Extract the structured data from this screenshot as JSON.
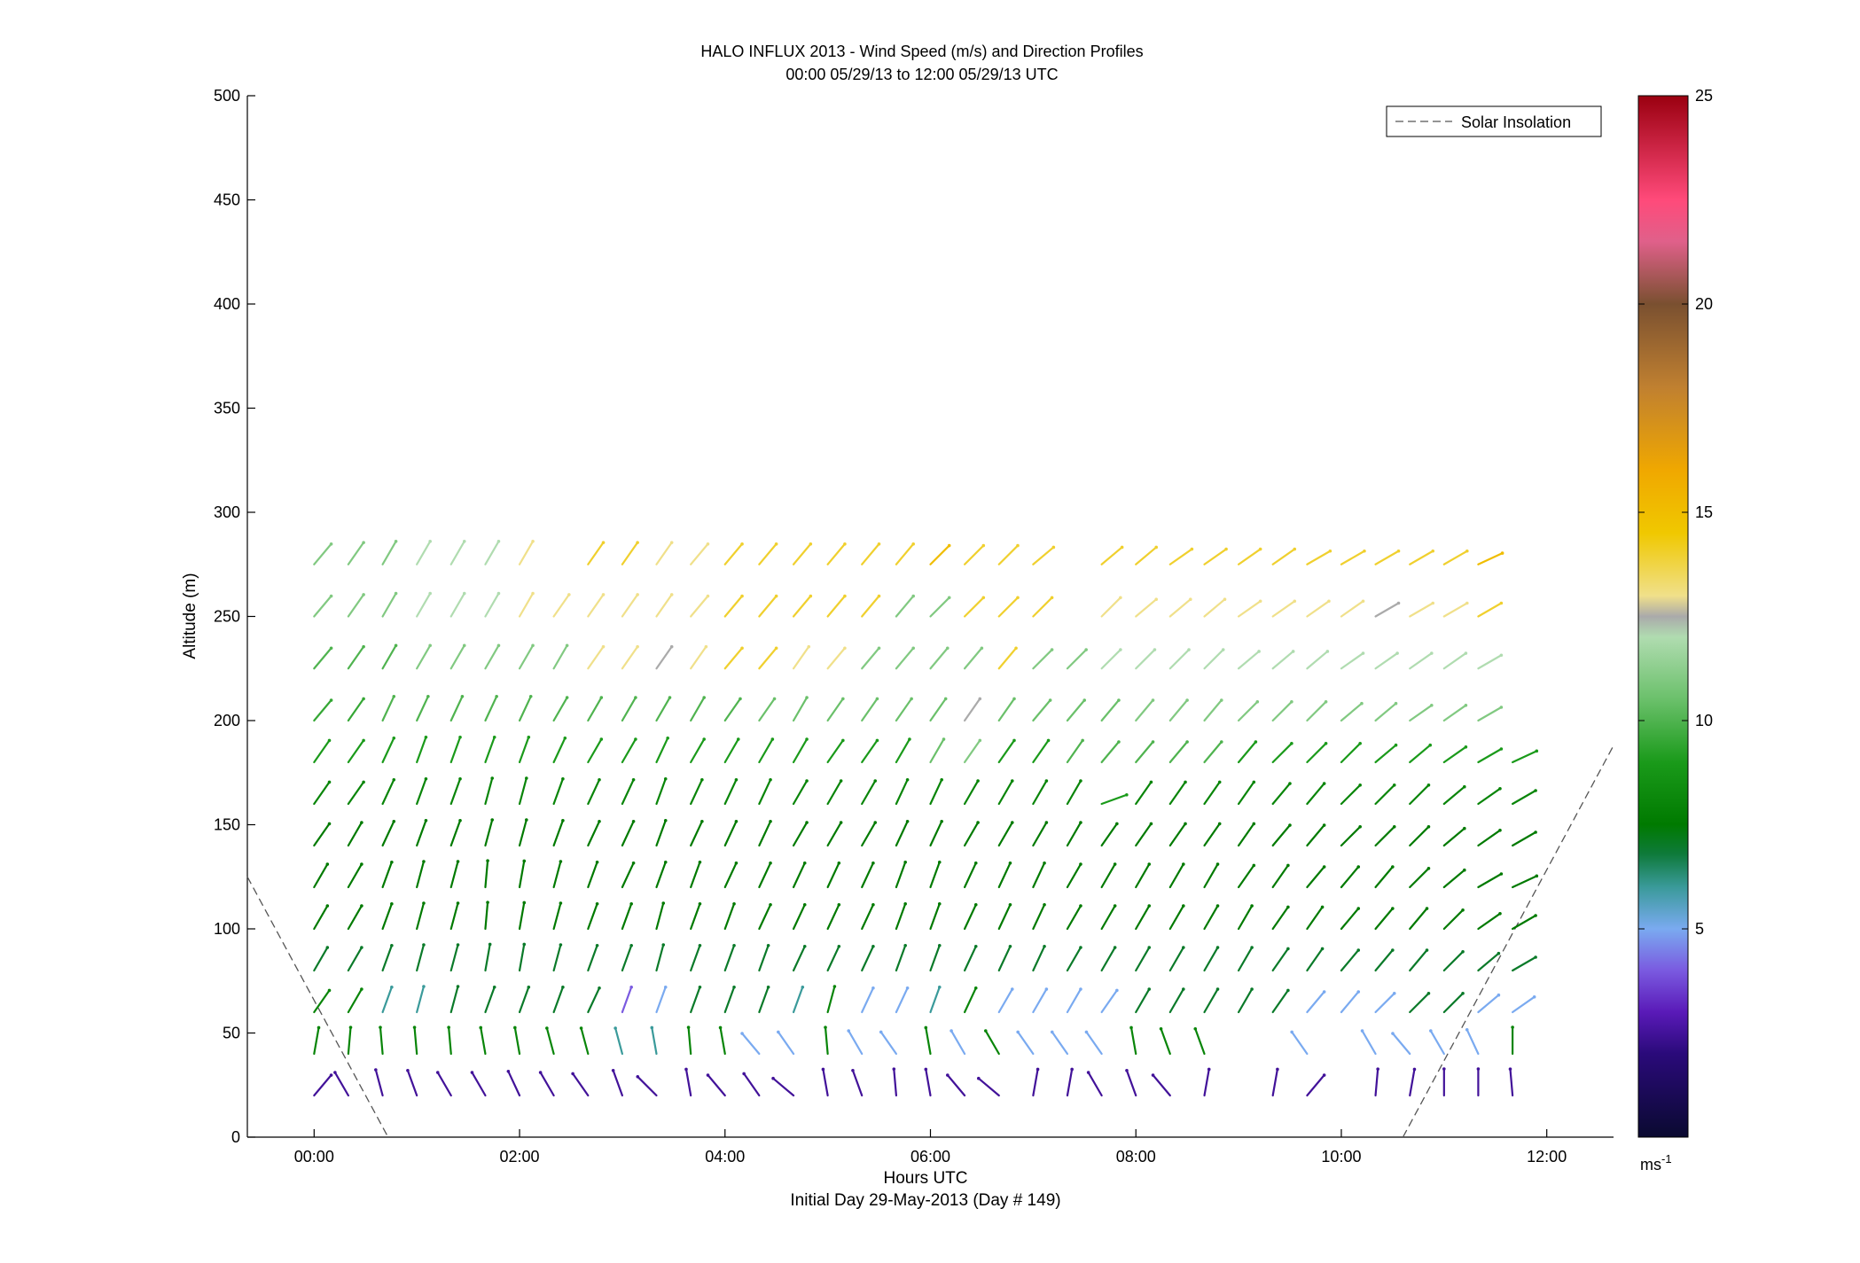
{
  "chart_data": {
    "type": "wind-barb-profile",
    "title": "HALO INFLUX 2013 - Wind Speed (m/s) and Direction Profiles",
    "subtitle": "00:00 05/29/13 to 12:00 05/29/13  UTC",
    "xlabel": "Hours UTC",
    "xlabel2": "Initial Day 29-May-2013 (Day # 149)",
    "ylabel": "Altitude (m)",
    "xlim": [
      -0.65,
      12.65
    ],
    "ylim": [
      0,
      500
    ],
    "xticks": [
      0,
      2,
      4,
      6,
      8,
      10,
      12
    ],
    "xtick_labels": [
      "00:00",
      "02:00",
      "04:00",
      "06:00",
      "08:00",
      "10:00",
      "12:00"
    ],
    "yticks": [
      0,
      50,
      100,
      150,
      200,
      250,
      300,
      350,
      400,
      450,
      500
    ],
    "ytick_labels": [
      "0",
      "50",
      "100",
      "150",
      "200",
      "250",
      "300",
      "350",
      "400",
      "450",
      "500"
    ],
    "legend": {
      "label": "Solar Insolation",
      "position": "top-right"
    },
    "colorbar": {
      "range": [
        0,
        25
      ],
      "ticks": [
        5,
        10,
        15,
        20,
        25
      ],
      "tick_labels": [
        "5",
        "10",
        "15",
        "20",
        "25"
      ],
      "unit_label": "ms",
      "unit_exponent": "-1",
      "stops": [
        [
          0,
          "#0a0a30"
        ],
        [
          2,
          "#2a0a7a"
        ],
        [
          3,
          "#5a1ab8"
        ],
        [
          4,
          "#7a5ae0"
        ],
        [
          5,
          "#7aaaf0"
        ],
        [
          6,
          "#3a9a9a"
        ],
        [
          6.8,
          "#0e7a3a"
        ],
        [
          7.5,
          "#007a00"
        ],
        [
          9,
          "#1a9a1a"
        ],
        [
          10.5,
          "#6ac06a"
        ],
        [
          12,
          "#b0dcb0"
        ],
        [
          12.5,
          "#aaaaaa"
        ],
        [
          13,
          "#f0e08a"
        ],
        [
          14.5,
          "#f0c800"
        ],
        [
          16,
          "#f0a800"
        ],
        [
          18,
          "#c08030"
        ],
        [
          20,
          "#7a5030"
        ],
        [
          21.5,
          "#e0608a"
        ],
        [
          22.5,
          "#ff4a7a"
        ],
        [
          25,
          "#9a0010"
        ]
      ]
    },
    "solar_insolation": [
      {
        "x": [
          -0.65,
          0.72
        ],
        "y": [
          125,
          0
        ]
      },
      {
        "x": [
          10.6,
          12.65
        ],
        "y": [
          0,
          188
        ]
      }
    ],
    "barb_times_hours": [
      0,
      0.333,
      0.667,
      1.0,
      1.333,
      1.667,
      2.0,
      2.333,
      2.667,
      3.0,
      3.333,
      3.667,
      4.0,
      4.333,
      4.667,
      5.0,
      5.333,
      5.667,
      6.0,
      6.333,
      6.667,
      7.0,
      7.333,
      7.667,
      8.0,
      8.333,
      8.667,
      9.0,
      9.333,
      9.667,
      10.0,
      10.333,
      10.667,
      11.0,
      11.333,
      11.667
    ],
    "profiles": [
      {
        "altitude": 20,
        "speed": [
          2.5,
          2.5,
          2.5,
          2.5,
          2.5,
          2.5,
          2.5,
          2.5,
          2.5,
          2.5,
          2.5,
          2.5,
          2.5,
          2.5,
          2.5,
          2.5,
          2.5,
          2.5,
          2.5,
          2.5,
          2.5,
          2.5,
          2.5,
          2.5,
          2.5,
          2.5,
          2.5,
          2.5,
          2.5,
          2.5,
          2.5,
          2.5,
          2.5,
          2.5,
          2.5,
          2.5
        ],
        "dir": [
          40,
          -30,
          -15,
          -20,
          -30,
          -30,
          -25,
          -30,
          -35,
          -20,
          -45,
          -10,
          -40,
          -35,
          -50,
          -10,
          -20,
          -5,
          -10,
          -40,
          -50,
          10,
          10,
          -30,
          -20,
          -40,
          10,
          null,
          10,
          40,
          null,
          5,
          10,
          0,
          0,
          -5
        ]
      },
      {
        "altitude": 40,
        "speed": [
          8,
          8,
          8,
          8,
          8,
          8,
          8,
          8,
          8,
          6,
          6,
          8,
          8,
          5,
          5,
          8,
          5,
          5,
          8,
          5,
          8,
          5,
          5,
          5,
          8,
          8,
          8,
          null,
          null,
          5,
          null,
          5,
          5,
          5,
          5,
          8
        ],
        "dir": [
          10,
          5,
          -5,
          -5,
          -5,
          -10,
          -10,
          -15,
          -15,
          -15,
          -10,
          -5,
          -10,
          -40,
          -35,
          -5,
          -30,
          -35,
          -10,
          -30,
          -30,
          -35,
          -35,
          -35,
          -10,
          -20,
          -20,
          null,
          -40,
          -35,
          null,
          -30,
          -40,
          -30,
          -25,
          0
        ]
      },
      {
        "altitude": 60,
        "speed": [
          8,
          8,
          6,
          6,
          7,
          7,
          7,
          7,
          7,
          4,
          5,
          7,
          7,
          7,
          6,
          8,
          5,
          5,
          6,
          8,
          5,
          5,
          5,
          5,
          7,
          7,
          7,
          7,
          7,
          5,
          5,
          5,
          7,
          7,
          5,
          5
        ],
        "dir": [
          35,
          30,
          20,
          15,
          15,
          20,
          20,
          20,
          25,
          20,
          20,
          20,
          20,
          20,
          20,
          15,
          25,
          25,
          20,
          25,
          30,
          30,
          30,
          35,
          30,
          30,
          30,
          30,
          35,
          40,
          40,
          45,
          45,
          45,
          50,
          55
        ]
      },
      {
        "altitude": 80,
        "speed": [
          7,
          7,
          7,
          7,
          7,
          7,
          7,
          7,
          7,
          7,
          7,
          7,
          7,
          7,
          7,
          7,
          7,
          7,
          7,
          7,
          7,
          7,
          7,
          7,
          7,
          7,
          7,
          7,
          7,
          7,
          7,
          7,
          7,
          7,
          7,
          7
        ],
        "dir": [
          30,
          30,
          20,
          15,
          15,
          10,
          10,
          15,
          20,
          20,
          15,
          20,
          20,
          20,
          25,
          25,
          25,
          20,
          20,
          25,
          25,
          25,
          30,
          30,
          30,
          30,
          30,
          30,
          35,
          35,
          40,
          40,
          40,
          45,
          50,
          60
        ]
      },
      {
        "altitude": 100,
        "speed": [
          7.5,
          7.5,
          7.5,
          7.5,
          7.5,
          7.5,
          7.5,
          7.5,
          7.5,
          7.5,
          7.5,
          7.5,
          7.5,
          7.5,
          7.5,
          7.5,
          7.5,
          7.5,
          7.5,
          7.5,
          7.5,
          7.5,
          7.5,
          7.5,
          7.5,
          7.5,
          7.5,
          7.5,
          7.5,
          7.5,
          7.5,
          7.5,
          7.5,
          7.5,
          7.5,
          7.5
        ],
        "dir": [
          30,
          30,
          20,
          15,
          15,
          5,
          10,
          15,
          20,
          20,
          15,
          20,
          20,
          25,
          25,
          25,
          25,
          20,
          20,
          25,
          25,
          25,
          30,
          30,
          30,
          30,
          30,
          30,
          35,
          35,
          40,
          40,
          40,
          45,
          55,
          60
        ]
      },
      {
        "altitude": 120,
        "speed": [
          7.5,
          7.5,
          7.5,
          7.5,
          7.5,
          7.5,
          7.5,
          7.5,
          7.5,
          7.5,
          7.5,
          7.5,
          7.5,
          7.5,
          7.5,
          7.5,
          7.5,
          7.5,
          7.5,
          7.5,
          7.5,
          7.5,
          7.5,
          7.5,
          7.5,
          7.5,
          7.5,
          7.5,
          7.5,
          7.5,
          7.5,
          7.5,
          7.5,
          7.5,
          7.5,
          7.5
        ],
        "dir": [
          30,
          30,
          20,
          15,
          15,
          5,
          10,
          15,
          20,
          25,
          20,
          20,
          25,
          25,
          25,
          25,
          25,
          20,
          20,
          25,
          25,
          25,
          30,
          30,
          30,
          30,
          30,
          35,
          35,
          40,
          40,
          40,
          45,
          50,
          60,
          65
        ]
      },
      {
        "altitude": 140,
        "speed": [
          7.5,
          7.5,
          7.5,
          7.5,
          7.5,
          7.5,
          7.5,
          7.5,
          7.5,
          7.5,
          7.5,
          7.5,
          7.5,
          7.5,
          7.5,
          7.5,
          7.5,
          7.5,
          7.5,
          7.5,
          7.5,
          7.5,
          7.5,
          7.5,
          7.5,
          7.5,
          7.5,
          7.5,
          7.5,
          7.5,
          7.5,
          7.5,
          7.5,
          7.5,
          7.5,
          7.5
        ],
        "dir": [
          35,
          30,
          25,
          20,
          20,
          15,
          15,
          20,
          25,
          25,
          20,
          25,
          25,
          25,
          30,
          30,
          30,
          25,
          25,
          30,
          30,
          30,
          30,
          35,
          35,
          35,
          35,
          35,
          40,
          40,
          45,
          45,
          45,
          50,
          55,
          60
        ]
      },
      {
        "altitude": 160,
        "speed": [
          8,
          8,
          8,
          8,
          8,
          8,
          8,
          8,
          8,
          8,
          8,
          8,
          8,
          8,
          8,
          8,
          8,
          8,
          8,
          8,
          8,
          8,
          8,
          9,
          8,
          8,
          8,
          8,
          8,
          8,
          8,
          8,
          8,
          8,
          8,
          8
        ],
        "dir": [
          35,
          35,
          25,
          20,
          20,
          15,
          15,
          20,
          25,
          25,
          20,
          25,
          25,
          25,
          30,
          30,
          30,
          25,
          25,
          30,
          30,
          30,
          30,
          70,
          35,
          35,
          35,
          35,
          40,
          40,
          45,
          45,
          45,
          50,
          55,
          60
        ]
      },
      {
        "altitude": 180,
        "speed": [
          9,
          9,
          9,
          9,
          9,
          9,
          9,
          9,
          9,
          9,
          9,
          9,
          9,
          9,
          9,
          9,
          9,
          9,
          10.5,
          11,
          9,
          9,
          10,
          10,
          10,
          10,
          10,
          9,
          9,
          9,
          9,
          9,
          9,
          9,
          9,
          9
        ],
        "dir": [
          35,
          35,
          25,
          20,
          20,
          20,
          20,
          25,
          30,
          30,
          25,
          30,
          30,
          30,
          30,
          35,
          35,
          30,
          30,
          35,
          35,
          35,
          35,
          40,
          40,
          40,
          40,
          40,
          45,
          45,
          45,
          50,
          50,
          55,
          60,
          65
        ]
      },
      {
        "altitude": 200,
        "speed": [
          9.5,
          9.5,
          10,
          10,
          10,
          10,
          10,
          10,
          10,
          10,
          10,
          10,
          10,
          10.5,
          10.5,
          10.5,
          10.5,
          10.5,
          10.5,
          12.5,
          10.5,
          10.5,
          10.5,
          10.5,
          11,
          11,
          11,
          11,
          11,
          11,
          11,
          11,
          11,
          11,
          11,
          null
        ],
        "dir": [
          40,
          35,
          25,
          25,
          25,
          25,
          25,
          30,
          30,
          30,
          30,
          30,
          35,
          35,
          30,
          35,
          35,
          35,
          35,
          35,
          35,
          40,
          40,
          40,
          40,
          40,
          40,
          45,
          45,
          45,
          50,
          50,
          55,
          55,
          60,
          null
        ]
      },
      {
        "altitude": 225,
        "speed": [
          10,
          10,
          10,
          11,
          11,
          11,
          11,
          11,
          13,
          13,
          12.5,
          13,
          14,
          14,
          13,
          13,
          11,
          11,
          11,
          11,
          14,
          11,
          11,
          12,
          12,
          12,
          12,
          12,
          12,
          12,
          12,
          12,
          12,
          12,
          12,
          null
        ],
        "dir": [
          40,
          35,
          30,
          30,
          30,
          30,
          30,
          30,
          35,
          35,
          35,
          35,
          40,
          40,
          35,
          40,
          40,
          40,
          40,
          40,
          40,
          45,
          45,
          45,
          45,
          45,
          45,
          50,
          50,
          50,
          55,
          55,
          55,
          55,
          60,
          null
        ]
      },
      {
        "altitude": 250,
        "speed": [
          11,
          11,
          11,
          12,
          12,
          12,
          13,
          13,
          13,
          13,
          13,
          13,
          14,
          14,
          14,
          14,
          14,
          11,
          11,
          14,
          14,
          14,
          null,
          13,
          13,
          13,
          13,
          13,
          13,
          13,
          13,
          12.5,
          13,
          13,
          14,
          null
        ],
        "dir": [
          40,
          35,
          30,
          30,
          30,
          30,
          30,
          35,
          35,
          35,
          35,
          40,
          40,
          40,
          40,
          40,
          40,
          40,
          45,
          45,
          45,
          45,
          null,
          45,
          50,
          50,
          50,
          55,
          55,
          55,
          55,
          60,
          60,
          60,
          60,
          null
        ]
      },
      {
        "altitude": 275,
        "speed": [
          11,
          11,
          11,
          12,
          12,
          12,
          13,
          null,
          14,
          14,
          13,
          13,
          14,
          14,
          14,
          14,
          14,
          14,
          15,
          14,
          14,
          14,
          null,
          14,
          14,
          14,
          14,
          14,
          14,
          14,
          14,
          14,
          14,
          14,
          15,
          null
        ],
        "dir": [
          40,
          35,
          30,
          30,
          30,
          30,
          30,
          null,
          35,
          35,
          35,
          40,
          40,
          40,
          40,
          40,
          40,
          40,
          45,
          45,
          45,
          50,
          null,
          50,
          50,
          55,
          55,
          55,
          55,
          60,
          60,
          60,
          60,
          60,
          65,
          null
        ]
      }
    ]
  },
  "note_labels": {
    "xaxis": "Hours UTC",
    "yaxis": "Altitude (m)"
  }
}
